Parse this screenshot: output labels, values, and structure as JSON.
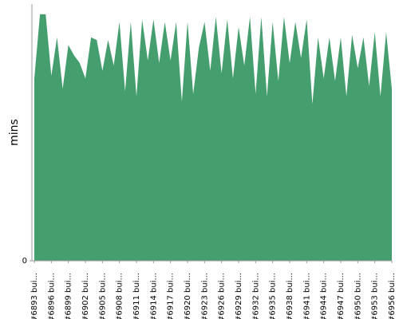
{
  "chart_data": {
    "type": "area",
    "y_label": "mins",
    "color": "#459e6e",
    "categories": [
      "#6893 bui...",
      null,
      null,
      "#6896 bui...",
      null,
      null,
      "#6899 bui...",
      null,
      null,
      "#6902 bui...",
      null,
      null,
      "#6905 bui...",
      null,
      null,
      "#6908 bui...",
      null,
      null,
      "#6911 bui...",
      null,
      null,
      "#6914 bui...",
      null,
      null,
      "#6917 bui...",
      null,
      null,
      "#6920 bui...",
      null,
      null,
      "#6923 bui...",
      null,
      null,
      "#6926 bui...",
      null,
      null,
      "#6929 bui...",
      null,
      null,
      "#6932 bui...",
      null,
      null,
      "#6935 bui...",
      null,
      null,
      "#6938 bui...",
      null,
      null,
      "#6941 bui...",
      null,
      null,
      "#6944 bui...",
      null,
      null,
      "#6947 bui...",
      null,
      null,
      "#6950 bui...",
      null,
      null,
      "#6953 bui...",
      null,
      null,
      "#6956 bui..."
    ],
    "values": [
      71,
      96,
      96,
      72,
      87,
      67,
      84,
      80,
      77,
      71,
      87,
      86,
      74,
      86,
      76,
      93,
      66,
      93,
      64,
      94,
      78,
      94,
      77,
      93,
      78,
      93,
      62,
      93,
      65,
      83,
      93,
      74,
      95,
      73,
      94,
      71,
      91,
      76,
      95,
      65,
      95,
      64,
      93,
      70,
      95,
      77,
      93,
      79,
      94,
      61,
      87,
      71,
      87,
      70,
      87,
      64,
      88,
      75,
      87,
      68,
      89,
      64,
      89,
      67
    ],
    "ylim": [
      0,
      100
    ],
    "yticks": [
      0
    ]
  }
}
